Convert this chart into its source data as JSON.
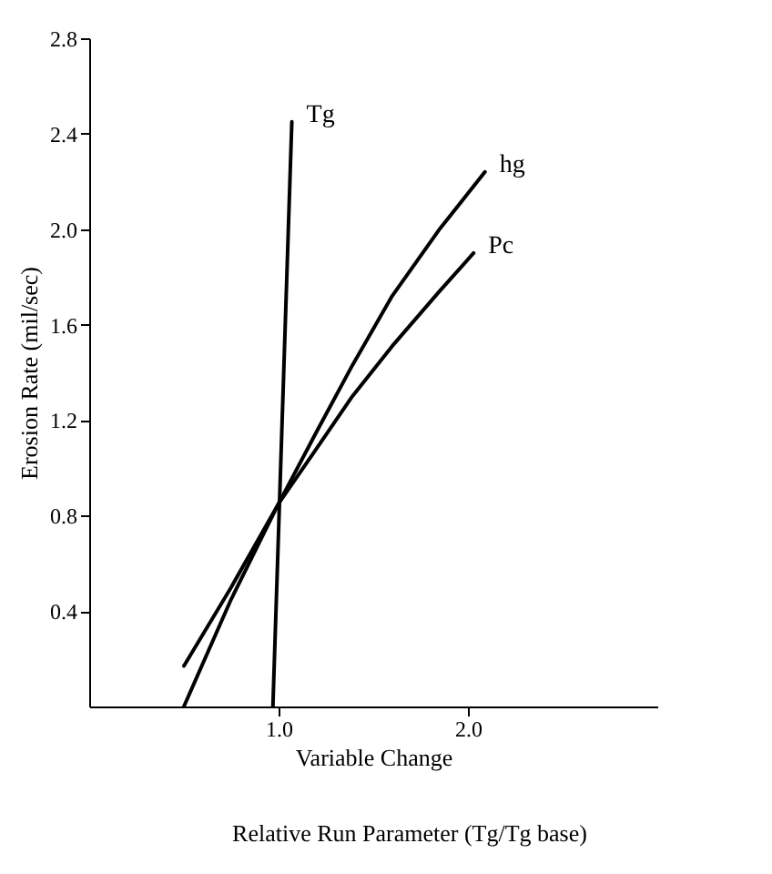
{
  "chart_data": {
    "type": "line",
    "xlabel": "Variable Change",
    "ylabel": "Erosion Rate (mil/sec)",
    "xlim": [
      0,
      3.0
    ],
    "ylim": [
      0,
      2.8
    ],
    "xticks": [
      {
        "value": 1,
        "label": "1.0"
      },
      {
        "value": 2,
        "label": "2.0"
      }
    ],
    "yticks": [
      0.4,
      0.8,
      1.2,
      1.6,
      {
        "value": 2,
        "label": "2.0"
      },
      2.4,
      2.8
    ],
    "grid": false,
    "marker": "none",
    "line_style": "solid",
    "series": [
      {
        "name": "Tg",
        "color": "#000000",
        "x": [
          0.97,
          1.07
        ],
        "values": [
          0,
          2.45
        ]
      },
      {
        "name": "hg",
        "color": "#000000",
        "x": [
          0.5,
          0.75,
          1.0,
          1.2,
          1.39,
          1.6,
          1.85,
          2.09
        ],
        "values": [
          0,
          0.45,
          0.85,
          1.15,
          1.43,
          1.72,
          2.0,
          2.24
        ]
      },
      {
        "name": "Pc",
        "color": "#000000",
        "x": [
          0.5,
          0.75,
          1.0,
          1.2,
          1.39,
          1.6,
          1.85,
          2.03
        ],
        "values": [
          0.17,
          0.5,
          0.85,
          1.08,
          1.3,
          1.51,
          1.74,
          1.9
        ]
      }
    ],
    "annotations": [
      "Relative Run Parameter (Tg/Tg base)"
    ]
  }
}
